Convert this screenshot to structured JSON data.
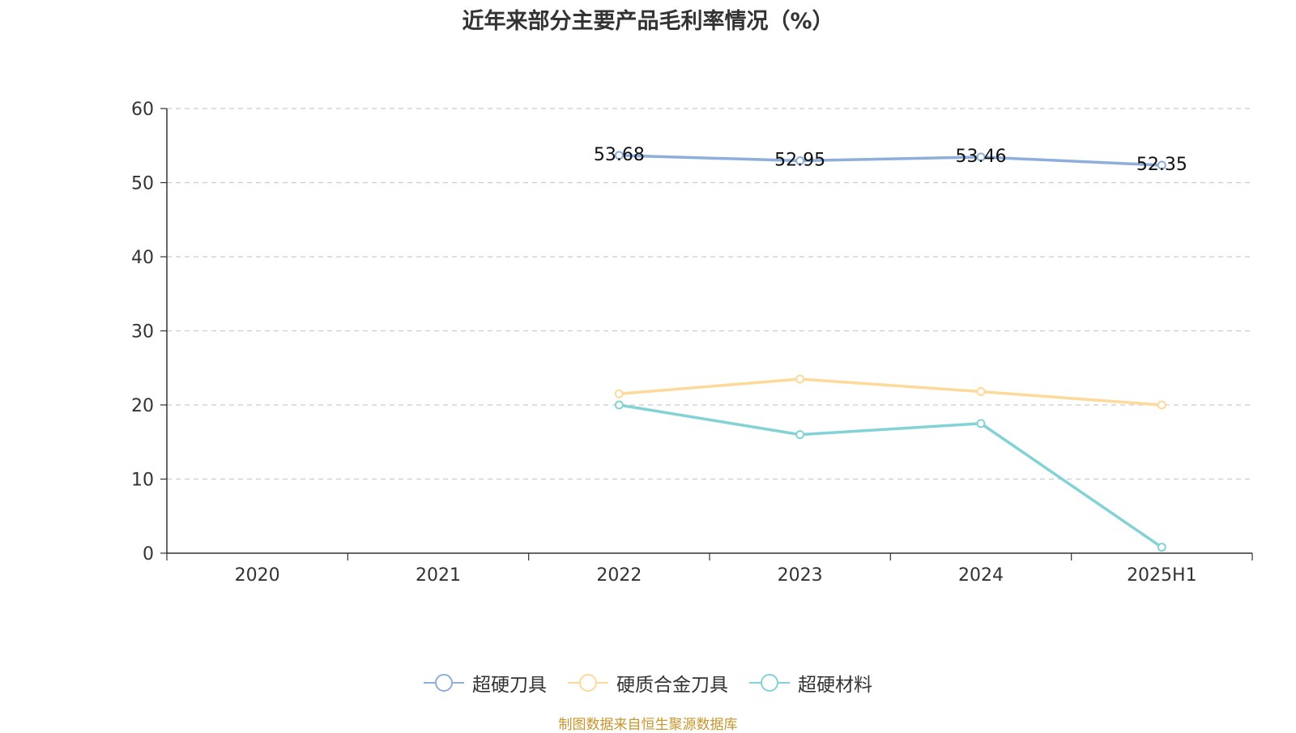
{
  "title": "近年来部分主要产品毛利率情况（%）",
  "footer": "制图数据来自恒生聚源数据库",
  "colors": {
    "axis": "#333333",
    "grid": "#cccccc",
    "text": "#333333",
    "footer": "#c9962e"
  },
  "legend": [
    {
      "label": "超硬刀具",
      "color": "#8eaedb"
    },
    {
      "label": "硬质合金刀具",
      "color": "#fdd99a"
    },
    {
      "label": "超硬材料",
      "color": "#82d2d6"
    }
  ],
  "chart_data": {
    "type": "line",
    "title": "近年来部分主要产品毛利率情况（%）",
    "categories": [
      "2020",
      "2021",
      "2022",
      "2023",
      "2024",
      "2025H1"
    ],
    "ylim": [
      0,
      60
    ],
    "yticks": [
      0,
      10,
      20,
      30,
      40,
      50,
      60
    ],
    "grid": true,
    "legend_position": "bottom",
    "series": [
      {
        "name": "超硬刀具",
        "color": "#8eaedb",
        "values": [
          null,
          null,
          53.68,
          52.95,
          53.46,
          52.35
        ],
        "show_labels": true
      },
      {
        "name": "硬质合金刀具",
        "color": "#fdd99a",
        "values": [
          null,
          null,
          21.5,
          23.5,
          21.8,
          20.0
        ],
        "show_labels": false
      },
      {
        "name": "超硬材料",
        "color": "#82d2d6",
        "values": [
          null,
          null,
          20.0,
          16.0,
          17.5,
          0.8
        ],
        "show_labels": false
      }
    ]
  }
}
